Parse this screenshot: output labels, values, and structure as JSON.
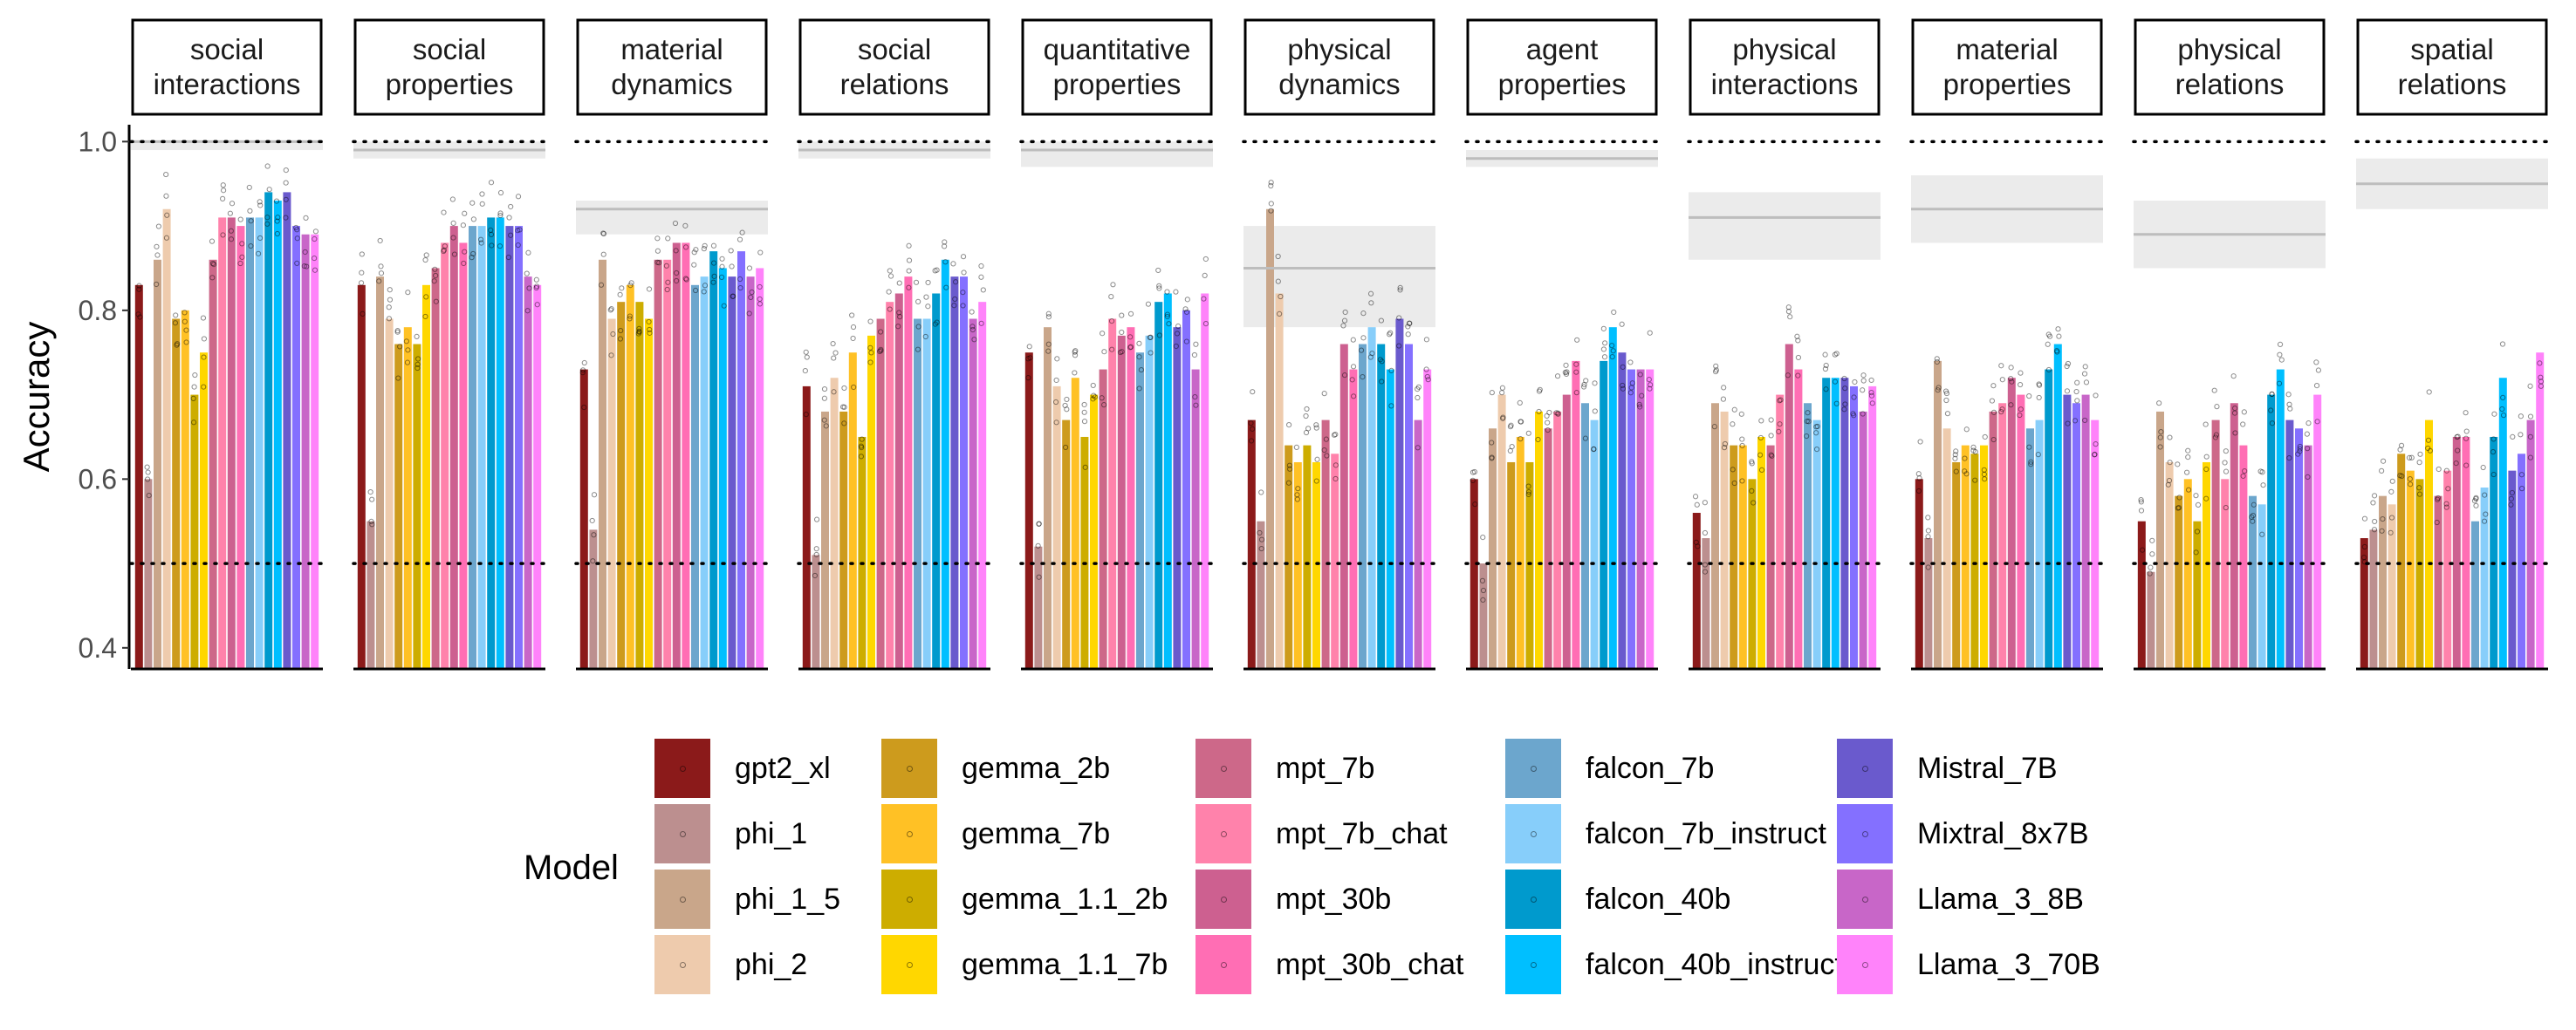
{
  "chart_data": {
    "type": "bar",
    "layout": "faceted",
    "ylabel": "Accuracy",
    "xlabel": "",
    "ylim": [
      0.375,
      1.02
    ],
    "yticks": [
      0.4,
      0.6,
      0.8,
      1.0
    ],
    "ytick_labels": [
      "0.4",
      "0.6",
      "0.8",
      "1.0"
    ],
    "reference_lines": [
      1.0,
      0.5
    ],
    "legend_title": "Model",
    "models": [
      {
        "name": "gpt2_xl",
        "color": "#8B1A1A"
      },
      {
        "name": "phi_1",
        "color": "#BC8F8F"
      },
      {
        "name": "phi_1_5",
        "color": "#C9A68A"
      },
      {
        "name": "phi_2",
        "color": "#EECBAD"
      },
      {
        "name": "gemma_2b",
        "color": "#CD9B1D"
      },
      {
        "name": "gemma_7b",
        "color": "#FFC125"
      },
      {
        "name": "gemma_1.1_2b",
        "color": "#CDAD00"
      },
      {
        "name": "gemma_1.1_7b",
        "color": "#FFD700"
      },
      {
        "name": "mpt_7b",
        "color": "#CD6889"
      },
      {
        "name": "mpt_7b_chat",
        "color": "#FF82AB"
      },
      {
        "name": "mpt_30b",
        "color": "#CD6090"
      },
      {
        "name": "mpt_30b_chat",
        "color": "#FF6EB4"
      },
      {
        "name": "falcon_7b",
        "color": "#6CA6CD"
      },
      {
        "name": "falcon_7b_instruct",
        "color": "#87CEFA"
      },
      {
        "name": "falcon_40b",
        "color": "#009ACD"
      },
      {
        "name": "falcon_40b_instruct",
        "color": "#00BFFF"
      },
      {
        "name": "Mistral_7B",
        "color": "#6A5ACD"
      },
      {
        "name": "Mixtral_8x7B",
        "color": "#8470FF"
      },
      {
        "name": "Llama_3_8B",
        "color": "#C866C8"
      },
      {
        "name": "Llama_3_70B",
        "color": "#FF83FA"
      }
    ],
    "facets": [
      {
        "title": [
          "social",
          "interactions"
        ],
        "human": 1.0,
        "human_band": [
          0.99,
          1.0
        ],
        "values": [
          0.83,
          0.6,
          0.86,
          0.92,
          0.79,
          0.8,
          0.7,
          0.75,
          0.86,
          0.91,
          0.91,
          0.9,
          0.91,
          0.91,
          0.94,
          0.93,
          0.94,
          0.9,
          0.89,
          0.89
        ]
      },
      {
        "title": [
          "social",
          "properties"
        ],
        "human": 0.99,
        "human_band": [
          0.98,
          1.0
        ],
        "values": [
          0.83,
          0.55,
          0.84,
          0.79,
          0.76,
          0.78,
          0.76,
          0.83,
          0.85,
          0.88,
          0.9,
          0.88,
          0.9,
          0.9,
          0.91,
          0.91,
          0.9,
          0.9,
          0.84,
          0.83
        ]
      },
      {
        "title": [
          "material",
          "dynamics"
        ],
        "human": 0.92,
        "human_band": [
          0.89,
          0.93
        ],
        "values": [
          0.73,
          0.54,
          0.86,
          0.79,
          0.81,
          0.83,
          0.81,
          0.79,
          0.86,
          0.86,
          0.88,
          0.88,
          0.83,
          0.84,
          0.87,
          0.85,
          0.84,
          0.87,
          0.84,
          0.85
        ]
      },
      {
        "title": [
          "social",
          "relations"
        ],
        "human": 0.99,
        "human_band": [
          0.98,
          1.0
        ],
        "values": [
          0.71,
          0.51,
          0.68,
          0.72,
          0.68,
          0.75,
          0.65,
          0.77,
          0.79,
          0.81,
          0.82,
          0.84,
          0.79,
          0.79,
          0.82,
          0.86,
          0.84,
          0.84,
          0.79,
          0.81
        ]
      },
      {
        "title": [
          "quantitative",
          "properties"
        ],
        "human": 0.99,
        "human_band": [
          0.97,
          1.0
        ],
        "values": [
          0.75,
          0.52,
          0.78,
          0.71,
          0.67,
          0.72,
          0.65,
          0.7,
          0.73,
          0.79,
          0.77,
          0.78,
          0.75,
          0.77,
          0.81,
          0.82,
          0.78,
          0.8,
          0.73,
          0.82
        ]
      },
      {
        "title": [
          "physical",
          "dynamics"
        ],
        "human": 0.85,
        "human_band": [
          0.78,
          0.9
        ],
        "values": [
          0.67,
          0.55,
          0.92,
          0.82,
          0.64,
          0.62,
          0.64,
          0.62,
          0.67,
          0.63,
          0.76,
          0.73,
          0.76,
          0.78,
          0.76,
          0.73,
          0.79,
          0.76,
          0.67,
          0.73
        ]
      },
      {
        "title": [
          "agent",
          "properties"
        ],
        "human": 0.98,
        "human_band": [
          0.97,
          0.99
        ],
        "values": [
          0.6,
          0.5,
          0.66,
          0.7,
          0.62,
          0.65,
          0.62,
          0.68,
          0.66,
          0.68,
          0.7,
          0.74,
          0.69,
          0.67,
          0.74,
          0.78,
          0.75,
          0.73,
          0.73,
          0.73
        ]
      },
      {
        "title": [
          "physical",
          "interactions"
        ],
        "human": 0.91,
        "human_band": [
          0.86,
          0.94
        ],
        "values": [
          0.56,
          0.53,
          0.69,
          0.68,
          0.64,
          0.64,
          0.6,
          0.65,
          0.64,
          0.7,
          0.76,
          0.73,
          0.69,
          0.67,
          0.72,
          0.72,
          0.72,
          0.71,
          0.68,
          0.71
        ]
      },
      {
        "title": [
          "material",
          "properties"
        ],
        "human": 0.92,
        "human_band": [
          0.88,
          0.96
        ],
        "values": [
          0.6,
          0.53,
          0.74,
          0.66,
          0.62,
          0.64,
          0.63,
          0.64,
          0.68,
          0.69,
          0.72,
          0.7,
          0.66,
          0.67,
          0.73,
          0.76,
          0.7,
          0.69,
          0.7,
          0.67
        ]
      },
      {
        "title": [
          "physical",
          "relations"
        ],
        "human": 0.89,
        "human_band": [
          0.85,
          0.93
        ],
        "values": [
          0.55,
          0.49,
          0.68,
          0.62,
          0.58,
          0.6,
          0.55,
          0.62,
          0.67,
          0.6,
          0.69,
          0.64,
          0.58,
          0.57,
          0.7,
          0.73,
          0.67,
          0.66,
          0.64,
          0.7
        ]
      },
      {
        "title": [
          "spatial",
          "relations"
        ],
        "human": 0.95,
        "human_band": [
          0.92,
          0.98
        ],
        "values": [
          0.53,
          0.54,
          0.58,
          0.57,
          0.63,
          0.61,
          0.6,
          0.67,
          0.58,
          0.61,
          0.65,
          0.65,
          0.55,
          0.59,
          0.65,
          0.72,
          0.61,
          0.63,
          0.67,
          0.75
        ]
      }
    ]
  }
}
